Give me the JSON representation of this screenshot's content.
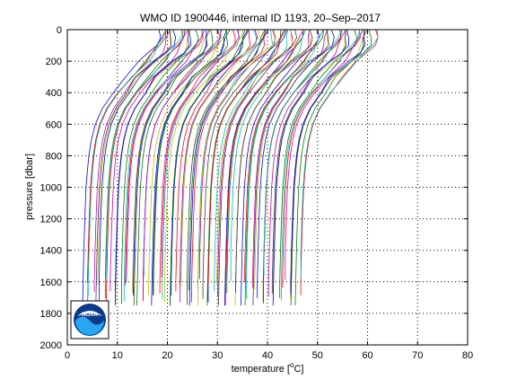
{
  "chart_data": {
    "type": "line",
    "title": "WMO ID 1900446, internal ID 1193, 20–Sep–2017",
    "xlabel_main": "temperature [",
    "xlabel_sup": "o",
    "xlabel_end": "C]",
    "ylabel": "pressure [dbar]",
    "xlim": [
      0,
      80
    ],
    "ylim": [
      2000,
      0
    ],
    "y_reversed": true,
    "xticks": [
      "0",
      "10",
      "20",
      "30",
      "40",
      "50",
      "60",
      "70",
      "80"
    ],
    "yticks": [
      "0",
      "200",
      "400",
      "600",
      "800",
      "1000",
      "1200",
      "1400",
      "1600",
      "1800",
      "2000"
    ],
    "grid": true,
    "grid_style": "dotted",
    "offset_profiles": true,
    "profile_count": 88,
    "profile_offset_step": 0.5,
    "base_profile": {
      "pressure": [
        0,
        50,
        100,
        150,
        200,
        300,
        400,
        500,
        600,
        700,
        800,
        900,
        1000,
        1200,
        1400,
        1600,
        1750
      ],
      "temperature": [
        18.3,
        18.1,
        17.6,
        16.4,
        14.8,
        11.5,
        9.2,
        7.0,
        5.6,
        4.8,
        4.3,
        4.0,
        3.75,
        3.5,
        3.3,
        3.15,
        3.05
      ]
    },
    "line_colors": [
      "#0000ff",
      "#008000",
      "#ff0000",
      "#00bfbf",
      "#bf00bf",
      "#bfbf00",
      "#404040"
    ]
  },
  "logo": {
    "text": "NOAA"
  }
}
